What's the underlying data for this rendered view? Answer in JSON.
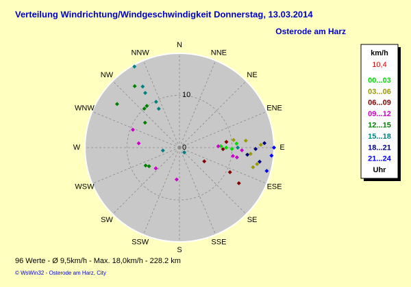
{
  "chart_data": {
    "type": "polar-scatter",
    "title": "Verteilung Windrichtung/Windgeschwindigkeit  Donnerstag, 13.03.2014",
    "subtitle": "Osterode am Harz",
    "direction_labels": [
      "N",
      "NNE",
      "NE",
      "ENE",
      "E",
      "ESE",
      "SE",
      "SSE",
      "S",
      "SSW",
      "SW",
      "WSW",
      "W",
      "WNW",
      "NW",
      "NNW"
    ],
    "rlim": [
      0,
      18
    ],
    "rticks": [
      0,
      10
    ],
    "grid": true,
    "legend_title": "km/h",
    "current_speed": {
      "value": 10.4,
      "label": "10,4"
    },
    "legend_footer": "Uhr",
    "series": [
      {
        "name": "00...03",
        "color": "#00dd00",
        "x": [
          90,
          91.5,
          86,
          88
        ],
        "values": [
          8.9,
          10.0,
          10.9,
          7.9
        ]
      },
      {
        "name": "03...06",
        "color": "#999900",
        "x": [
          82,
          95,
          105,
          102,
          84,
          88
        ],
        "values": [
          10.4,
          13.6,
          14.5,
          15.1,
          12.7,
          15.5
        ]
      },
      {
        "name": "06...09",
        "color": "#800000",
        "x": [
          119,
          92,
          116,
          121,
          83
        ],
        "values": [
          5.4,
          8.3,
          10.7,
          13.2,
          9.0
        ]
      },
      {
        "name": "09...12",
        "color": "#cc00cc",
        "x": [
          291,
          276,
          228.6,
          185,
          92.5,
          98.9,
          99.6,
          88
        ],
        "values": [
          9.5,
          7.8,
          6.0,
          6.1,
          11.9,
          10.3,
          11.1,
          7.4
        ]
      },
      {
        "name": "12...15",
        "color": "#008000",
        "x": [
          322,
          318,
          305,
          242,
          238.5,
          306,
          324
        ],
        "values": [
          10.1,
          10.0,
          14.5,
          7.3,
          6.8,
          8.1,
          14.5
        ]
      },
      {
        "name": "15...18",
        "color": "#008080",
        "x": [
          90,
          332,
          333,
          328,
          329,
          260,
          135,
          331
        ],
        "values": [
          11.1,
          8.4,
          9.8,
          12.3,
          13.6,
          3.2,
          1.3,
          17.7
        ]
      },
      {
        "name": "18...21",
        "color": "#000080",
        "x": [
          100,
          87,
          91,
          96
        ],
        "values": [
          15.5,
          16.2,
          14.5,
          13.0
        ]
      },
      {
        "name": "21...24",
        "color": "#0000ff",
        "x": [
          90,
          95,
          105
        ],
        "values": [
          18.0,
          17.6,
          17.2
        ]
      }
    ],
    "footer": "96 Werte   -   Ø 9,5km/h  -  Max. 18,0km/h   -   228.2 km",
    "credit": "© WsWin32  -  Osterode am Harz, City"
  }
}
